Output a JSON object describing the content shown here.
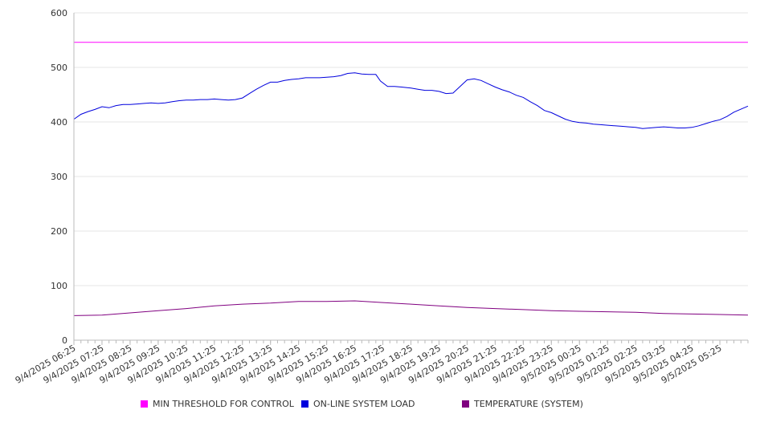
{
  "chart_data": {
    "type": "line",
    "title": "",
    "xlabel": "",
    "ylabel": "",
    "ylim": [
      0,
      600
    ],
    "yticks": [
      0,
      100,
      200,
      300,
      400,
      500,
      600
    ],
    "grid": true,
    "legend_position": "bottom",
    "x_ticks": [
      "9/4/2025 06:25",
      "9/4/2025 07:25",
      "9/4/2025 08:25",
      "9/4/2025 09:25",
      "9/4/2025 10:25",
      "9/4/2025 11:25",
      "9/4/2025 12:25",
      "9/4/2025 13:25",
      "9/4/2025 14:25",
      "9/4/2025 15:25",
      "9/4/2025 16:25",
      "9/4/2025 17:25",
      "9/4/2025 18:25",
      "9/4/2025 19:25",
      "9/4/2025 20:25",
      "9/4/2025 21:25",
      "9/4/2025 22:25",
      "9/4/2025 23:25",
      "9/5/2025 00:25",
      "9/5/2025 01:25",
      "9/5/2025 02:25",
      "9/5/2025 03:25",
      "9/5/2025 04:25",
      "9/5/2025 05:25"
    ],
    "x_start": "9/4/2025 06:25",
    "x_end": "9/5/2025 06:25",
    "series": [
      {
        "name": "MIN THRESHOLD FOR CONTROL",
        "color": "#ff00ff",
        "points": [
          [
            "9/4/2025 06:25",
            546
          ],
          [
            "9/5/2025 06:25",
            546
          ]
        ]
      },
      {
        "name": "ON-LINE SYSTEM LOAD",
        "color": "#0000dd",
        "points": [
          [
            "9/4/2025 06:25",
            405
          ],
          [
            "9/4/2025 06:40",
            414
          ],
          [
            "9/4/2025 06:55",
            419
          ],
          [
            "9/4/2025 07:10",
            423
          ],
          [
            "9/4/2025 07:25",
            428
          ],
          [
            "9/4/2025 07:40",
            426
          ],
          [
            "9/4/2025 07:55",
            430
          ],
          [
            "9/4/2025 08:10",
            432
          ],
          [
            "9/4/2025 08:25",
            432
          ],
          [
            "9/4/2025 08:40",
            433
          ],
          [
            "9/4/2025 08:55",
            434
          ],
          [
            "9/4/2025 09:10",
            435
          ],
          [
            "9/4/2025 09:25",
            434
          ],
          [
            "9/4/2025 09:40",
            435
          ],
          [
            "9/4/2025 09:55",
            437
          ],
          [
            "9/4/2025 10:10",
            439
          ],
          [
            "9/4/2025 10:25",
            440
          ],
          [
            "9/4/2025 10:40",
            440
          ],
          [
            "9/4/2025 10:55",
            441
          ],
          [
            "9/4/2025 11:10",
            441
          ],
          [
            "9/4/2025 11:25",
            442
          ],
          [
            "9/4/2025 11:40",
            441
          ],
          [
            "9/4/2025 11:55",
            440
          ],
          [
            "9/4/2025 12:10",
            441
          ],
          [
            "9/4/2025 12:25",
            444
          ],
          [
            "9/4/2025 12:40",
            452
          ],
          [
            "9/4/2025 12:55",
            460
          ],
          [
            "9/4/2025 13:10",
            467
          ],
          [
            "9/4/2025 13:25",
            473
          ],
          [
            "9/4/2025 13:40",
            473
          ],
          [
            "9/4/2025 13:55",
            476
          ],
          [
            "9/4/2025 14:10",
            478
          ],
          [
            "9/4/2025 14:25",
            479
          ],
          [
            "9/4/2025 14:40",
            481
          ],
          [
            "9/4/2025 14:55",
            481
          ],
          [
            "9/4/2025 15:10",
            481
          ],
          [
            "9/4/2025 15:25",
            482
          ],
          [
            "9/4/2025 15:40",
            483
          ],
          [
            "9/4/2025 15:55",
            485
          ],
          [
            "9/4/2025 16:10",
            489
          ],
          [
            "9/4/2025 16:25",
            490
          ],
          [
            "9/4/2025 16:40",
            488
          ],
          [
            "9/4/2025 16:55",
            487
          ],
          [
            "9/4/2025 17:10",
            487
          ],
          [
            "9/4/2025 17:20",
            475
          ],
          [
            "9/4/2025 17:35",
            465
          ],
          [
            "9/4/2025 17:50",
            465
          ],
          [
            "9/4/2025 18:05",
            464
          ],
          [
            "9/4/2025 18:25",
            462
          ],
          [
            "9/4/2025 18:40",
            460
          ],
          [
            "9/4/2025 18:55",
            458
          ],
          [
            "9/4/2025 19:10",
            458
          ],
          [
            "9/4/2025 19:25",
            456
          ],
          [
            "9/4/2025 19:40",
            452
          ],
          [
            "9/4/2025 19:55",
            453
          ],
          [
            "9/4/2025 20:10",
            465
          ],
          [
            "9/4/2025 20:25",
            477
          ],
          [
            "9/4/2025 20:40",
            479
          ],
          [
            "9/4/2025 20:55",
            476
          ],
          [
            "9/4/2025 21:10",
            470
          ],
          [
            "9/4/2025 21:25",
            464
          ],
          [
            "9/4/2025 21:40",
            459
          ],
          [
            "9/4/2025 21:55",
            455
          ],
          [
            "9/4/2025 22:10",
            449
          ],
          [
            "9/4/2025 22:25",
            445
          ],
          [
            "9/4/2025 22:40",
            437
          ],
          [
            "9/4/2025 22:55",
            430
          ],
          [
            "9/4/2025 23:10",
            421
          ],
          [
            "9/4/2025 23:25",
            417
          ],
          [
            "9/4/2025 23:40",
            411
          ],
          [
            "9/4/2025 23:55",
            405
          ],
          [
            "9/5/2025 00:10",
            401
          ],
          [
            "9/5/2025 00:25",
            399
          ],
          [
            "9/5/2025 00:40",
            398
          ],
          [
            "9/5/2025 00:55",
            396
          ],
          [
            "9/5/2025 01:10",
            395
          ],
          [
            "9/5/2025 01:25",
            394
          ],
          [
            "9/5/2025 01:40",
            393
          ],
          [
            "9/5/2025 01:55",
            392
          ],
          [
            "9/5/2025 02:10",
            391
          ],
          [
            "9/5/2025 02:25",
            390
          ],
          [
            "9/5/2025 02:40",
            388
          ],
          [
            "9/5/2025 02:55",
            389
          ],
          [
            "9/5/2025 03:10",
            390
          ],
          [
            "9/5/2025 03:25",
            391
          ],
          [
            "9/5/2025 03:40",
            390
          ],
          [
            "9/5/2025 03:55",
            389
          ],
          [
            "9/5/2025 04:10",
            389
          ],
          [
            "9/5/2025 04:25",
            390
          ],
          [
            "9/5/2025 04:40",
            393
          ],
          [
            "9/5/2025 04:55",
            397
          ],
          [
            "9/5/2025 05:10",
            401
          ],
          [
            "9/5/2025 05:25",
            404
          ],
          [
            "9/5/2025 05:40",
            410
          ],
          [
            "9/5/2025 05:55",
            418
          ],
          [
            "9/5/2025 06:25",
            429
          ]
        ]
      },
      {
        "name": "TEMPERATURE (SYSTEM)",
        "color": "#800080",
        "points": [
          [
            "9/4/2025 06:25",
            45
          ],
          [
            "9/4/2025 07:25",
            46
          ],
          [
            "9/4/2025 08:25",
            50
          ],
          [
            "9/4/2025 09:25",
            54
          ],
          [
            "9/4/2025 10:25",
            58
          ],
          [
            "9/4/2025 11:25",
            63
          ],
          [
            "9/4/2025 12:25",
            66
          ],
          [
            "9/4/2025 13:25",
            68
          ],
          [
            "9/4/2025 14:25",
            71
          ],
          [
            "9/4/2025 15:25",
            71
          ],
          [
            "9/4/2025 16:25",
            72
          ],
          [
            "9/4/2025 17:25",
            69
          ],
          [
            "9/4/2025 18:25",
            66
          ],
          [
            "9/4/2025 19:25",
            63
          ],
          [
            "9/4/2025 20:25",
            60
          ],
          [
            "9/4/2025 21:25",
            58
          ],
          [
            "9/4/2025 22:25",
            56
          ],
          [
            "9/4/2025 23:25",
            54
          ],
          [
            "9/5/2025 00:25",
            53
          ],
          [
            "9/5/2025 01:25",
            52
          ],
          [
            "9/5/2025 02:25",
            51
          ],
          [
            "9/5/2025 03:25",
            49
          ],
          [
            "9/5/2025 04:25",
            48
          ],
          [
            "9/5/2025 05:25",
            47
          ],
          [
            "9/5/2025 06:25",
            46
          ]
        ]
      }
    ]
  },
  "colors": {
    "axis": "#bbbbbb",
    "grid": "#e6e6e6",
    "text": "#333333"
  }
}
